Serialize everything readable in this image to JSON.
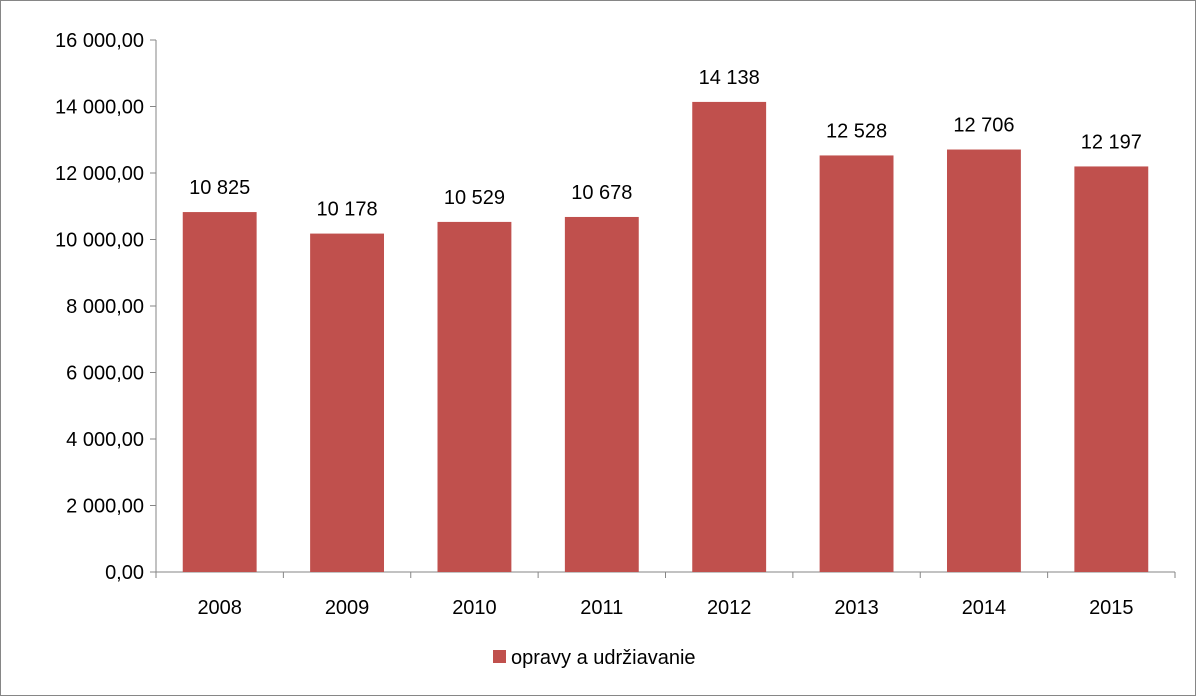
{
  "chart_data": {
    "type": "bar",
    "categories": [
      "2008",
      "2009",
      "2010",
      "2011",
      "2012",
      "2013",
      "2014",
      "2015"
    ],
    "series": [
      {
        "name": "opravy a udržiavanie",
        "values": [
          10825,
          10178,
          10529,
          10678,
          14138,
          12528,
          12706,
          12197
        ],
        "labels": [
          "10 825",
          "10 178",
          "10 529",
          "10 678",
          "14 138",
          "12 528",
          "12 706",
          "12 197"
        ],
        "color": "#c0504d"
      }
    ],
    "y_ticks": [
      "0,00",
      "2 000,00",
      "4 000,00",
      "6 000,00",
      "8 000,00",
      "10 000,00",
      "12 000,00",
      "14 000,00",
      "16 000,00"
    ],
    "ylim": [
      0,
      16000
    ],
    "y_step": 2000,
    "title": "",
    "xlabel": "",
    "ylabel": "",
    "grid": false,
    "legend_position": "bottom"
  }
}
